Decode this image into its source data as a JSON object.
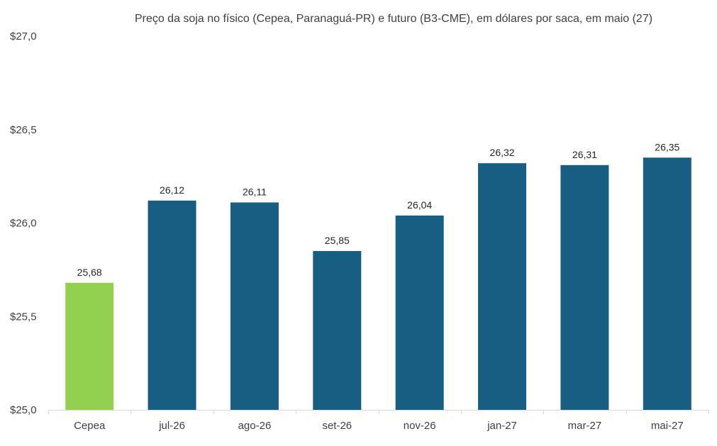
{
  "chart_data": {
    "type": "bar",
    "title": "Preço da soja no físico (Cepea, Paranaguá-PR) e futuro (B3-CME), em dólares por saca, em maio (27)",
    "xlabel": "",
    "ylabel": "",
    "categories": [
      "Cepea",
      "jul-26",
      "ago-26",
      "set-26",
      "nov-26",
      "jan-27",
      "mar-27",
      "mai-27"
    ],
    "values": [
      25.68,
      26.12,
      26.11,
      25.85,
      26.04,
      26.32,
      26.31,
      26.35
    ],
    "data_labels": [
      "25,68",
      "26,12",
      "26,11",
      "25,85",
      "26,04",
      "26,32",
      "26,31",
      "26,35"
    ],
    "ylim": [
      25.0,
      27.0
    ],
    "yticks": [
      25.0,
      25.5,
      26.0,
      26.5,
      27.0
    ],
    "ytick_labels": [
      "$25,0",
      "$25,5",
      "$26,0",
      "$26,5",
      "$27,0"
    ],
    "grid": false,
    "legend": "none",
    "colors": {
      "spot": "#92D050",
      "futures": "#175E82",
      "axis": "#D9D9D9",
      "text": "#404040"
    }
  }
}
